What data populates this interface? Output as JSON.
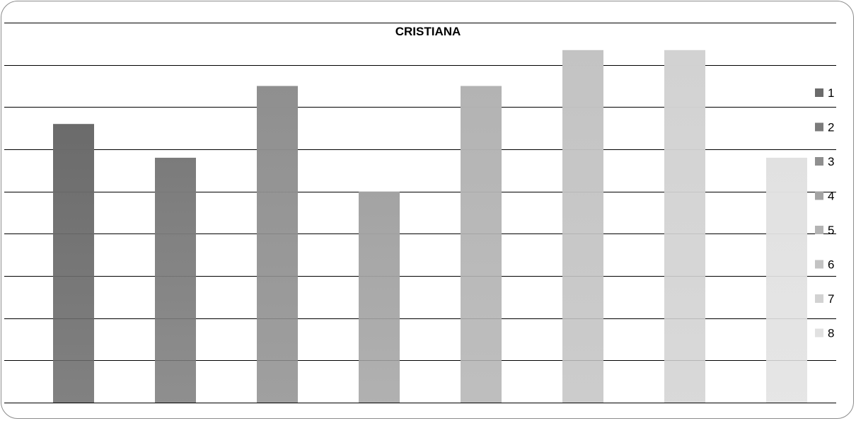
{
  "chart_data": {
    "type": "bar",
    "title": "CRISTIANA",
    "categories": [
      "1",
      "2",
      "3",
      "4",
      "5",
      "6",
      "7",
      "8"
    ],
    "values": [
      6.6,
      5.8,
      7.5,
      5.0,
      7.5,
      8.35,
      8.35,
      5.8
    ],
    "ylim": [
      0,
      9
    ],
    "y_gridline_step": 1,
    "grid": true,
    "ytick_labels_shown": false,
    "xtick_labels_shown": false,
    "legend": {
      "position": "right",
      "entries": [
        "1",
        "2",
        "3",
        "4",
        "5",
        "6",
        "7",
        "8"
      ]
    },
    "colors": [
      "#6b6b6b",
      "#7b7b7b",
      "#8f8f8f",
      "#a3a3a3",
      "#b3b3b3",
      "#c3c3c3",
      "#d2d2d2",
      "#e1e1e1"
    ],
    "color_scheme": "grayscale-gradient"
  }
}
